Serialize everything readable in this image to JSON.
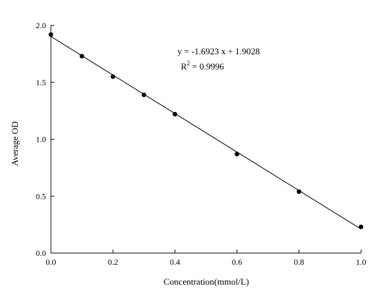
{
  "chart_data": {
    "type": "scatter",
    "title": "",
    "xlabel": "Concentration(mmol/L)",
    "ylabel": "Average OD",
    "xlim": [
      0.0,
      1.0
    ],
    "ylim": [
      0.0,
      2.0
    ],
    "xticks": [
      "0.0",
      "0.2",
      "0.4",
      "0.6",
      "0.8",
      "1.0"
    ],
    "yticks": [
      "0.0",
      "0.5",
      "1.0",
      "1.5",
      "2.0"
    ],
    "grid": false,
    "series": [
      {
        "x": [
          0.0,
          0.1,
          0.2,
          0.3,
          0.4,
          0.6,
          0.8,
          1.0
        ],
        "y": [
          1.92,
          1.73,
          1.55,
          1.39,
          1.22,
          0.87,
          0.54,
          0.23
        ]
      }
    ],
    "fit_line": {
      "slope": -1.6923,
      "intercept": 1.9028
    },
    "annotations": {
      "equation": "y = -1.6923 x + 1.9028",
      "r2_prefix": "R",
      "r2_superscript": "2",
      "r2_suffix": " = 0.9996"
    }
  }
}
